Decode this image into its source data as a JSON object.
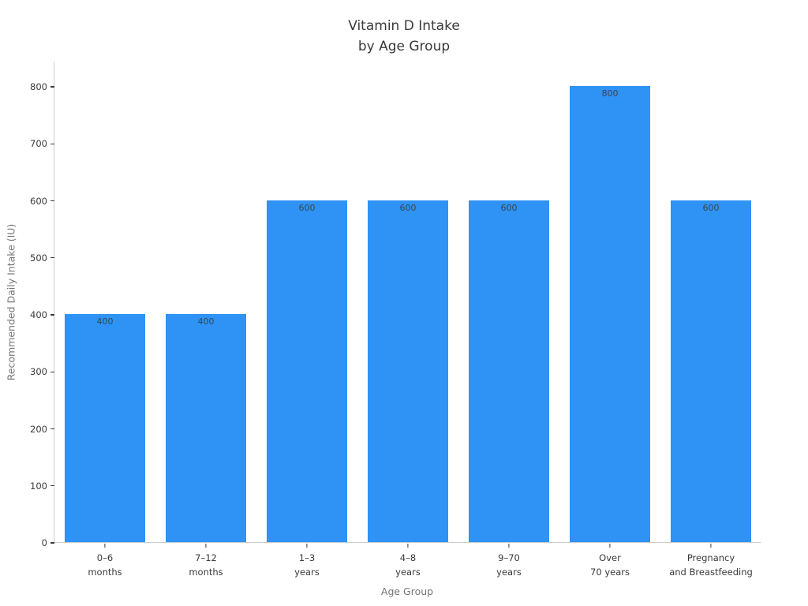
{
  "header": {
    "title_line1": "Vitamin D Intake",
    "title_line2": "by Age Group"
  },
  "chart_data": {
    "type": "bar",
    "title": "Vitamin D Intake by Age Group",
    "categories": [
      "0–6 months",
      "7–12 months",
      "1–3 years",
      "4–8 years",
      "9–70 years",
      "Over 70 years",
      "Pregnancy and Breastfeeding"
    ],
    "category_tick_lines": [
      [
        "0–6",
        "months"
      ],
      [
        "7–12",
        "months"
      ],
      [
        "1–3",
        "years"
      ],
      [
        "4–8",
        "years"
      ],
      [
        "9–70",
        "years"
      ],
      [
        "Over",
        "70 years"
      ],
      [
        "Pregnancy",
        "and Breastfeeding"
      ]
    ],
    "values": [
      400,
      400,
      600,
      600,
      600,
      800,
      600
    ],
    "value_labels": [
      "400",
      "400",
      "600",
      "600",
      "600",
      "800",
      "600"
    ],
    "xlabel": "Age Group",
    "ylabel": "Recommended Daily Intake (IU)",
    "ylim": [
      0,
      800
    ],
    "yticks": [
      0,
      100,
      200,
      300,
      400,
      500,
      600,
      700,
      800
    ],
    "grid": false,
    "legend": "none",
    "colors": {
      "bar": "#2E93F5",
      "bar_value_text": "#37474f",
      "tick_text": "#3a3a3a",
      "axis_line": "#cccccc",
      "axis_title_text": "#757575",
      "title_text": "#3a3a3a",
      "background": "#ffffff"
    }
  }
}
